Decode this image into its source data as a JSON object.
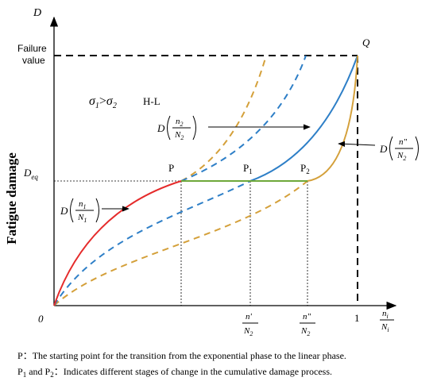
{
  "axes": {
    "y_label": "D",
    "x_num": "n",
    "x_num_sub": "i",
    "x_den": "N",
    "x_den_sub": "i",
    "origin": "0",
    "failure_value": [
      "Failure",
      "value"
    ],
    "d_eq": "D",
    "d_eq_sub": "eq",
    "one": "1",
    "y_title": "Fatigue damage"
  },
  "points": {
    "p": "P",
    "p1": "P",
    "p1_sub": "1",
    "p2": "P",
    "p2_sub": "2",
    "q": "Q"
  },
  "condition": {
    "s1": "σ",
    "s1_sub": "1",
    "gt": ">",
    "s2": "σ",
    "s2_sub": "2",
    "mode": "H-L"
  },
  "ticks": [
    {
      "num": "n'",
      "den": "N",
      "den_sub": "2"
    },
    {
      "num": "n\"",
      "den": "N",
      "den_sub": "2"
    }
  ],
  "annotations": [
    {
      "func": "D",
      "num": "n",
      "num_sub": "1",
      "den": "N",
      "den_sub": "1"
    },
    {
      "func": "D",
      "num": "n",
      "num_sub": "2",
      "den": "N",
      "den_sub": "2"
    },
    {
      "func": "D",
      "num": "n\"",
      "den": "N",
      "den_sub": "2"
    }
  ],
  "captions": [
    {
      "label": "P",
      "text": "：The starting point for the transition from the exponential phase to the linear phase."
    },
    {
      "a": "P",
      "a_sub": "1",
      "and": " and P",
      "b_sub": "2",
      "text": "：Indicates different stages of change in the cumulative damage process."
    }
  ]
}
